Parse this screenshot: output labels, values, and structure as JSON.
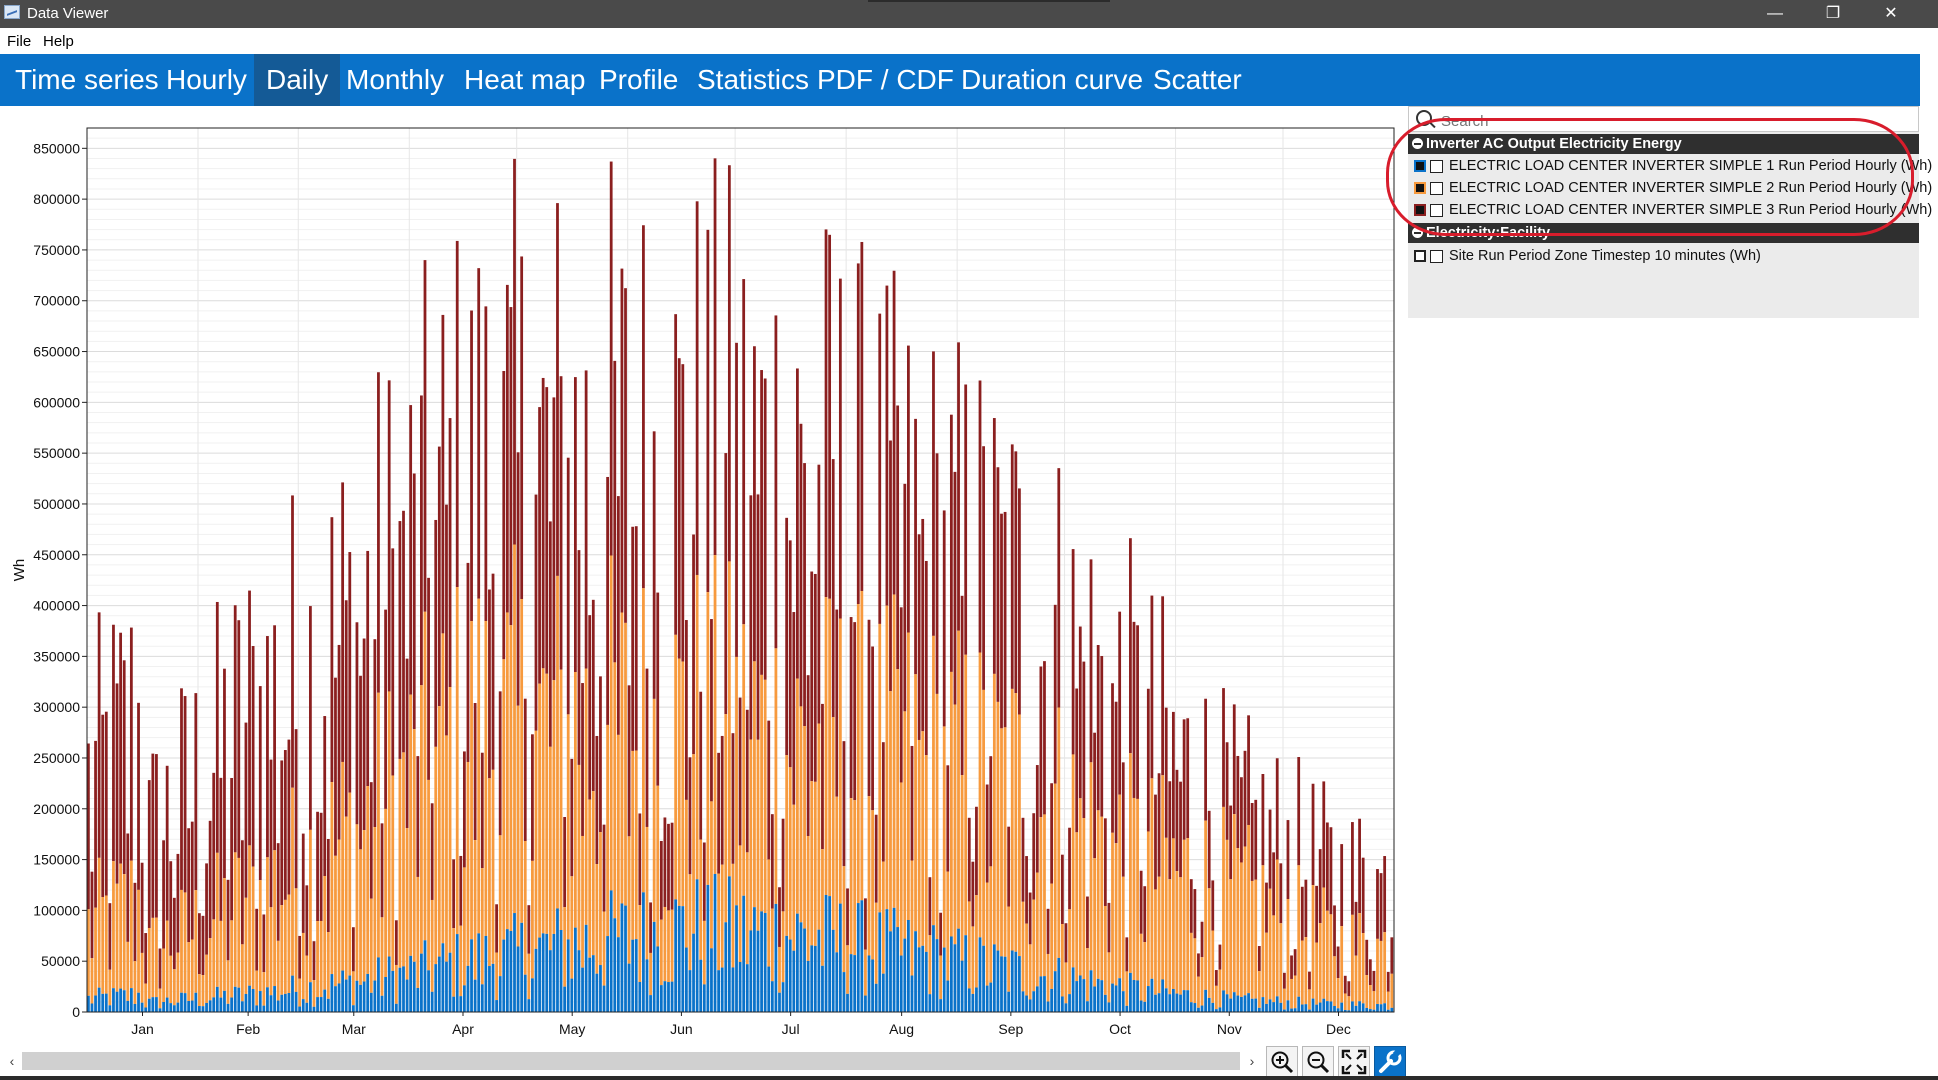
{
  "window": {
    "title": "Data Viewer",
    "minimize": "—",
    "restore": "❐",
    "close": "✕"
  },
  "menu": {
    "file": "File",
    "help": "Help"
  },
  "tabs": [
    {
      "label": "Time series",
      "active": false
    },
    {
      "label": "Hourly",
      "active": false
    },
    {
      "label": "Daily",
      "active": true
    },
    {
      "label": "Monthly",
      "active": false
    },
    {
      "label": "Heat map",
      "active": false
    },
    {
      "label": "Profile",
      "active": false
    },
    {
      "label": "Statistics",
      "active": false
    },
    {
      "label": "PDF / CDF",
      "active": false
    },
    {
      "label": "Duration curve",
      "active": false
    },
    {
      "label": "Scatter",
      "active": false
    }
  ],
  "search": {
    "placeholder": "Search",
    "value": ""
  },
  "panel": {
    "groups": [
      {
        "title": "Inverter AC Output Electricity Energy",
        "items": [
          {
            "label": "ELECTRIC LOAD CENTER INVERTER SIMPLE 1 Run Period Hourly (Wh)",
            "color": "#0a72c9",
            "checked": false
          },
          {
            "label": "ELECTRIC LOAD CENTER INVERTER SIMPLE 2 Run Period Hourly (Wh)",
            "color": "#f79a3e",
            "checked": false
          },
          {
            "label": "ELECTRIC LOAD CENTER INVERTER SIMPLE 3 Run Period Hourly (Wh)",
            "color": "#8b1f1f",
            "checked": false
          }
        ]
      },
      {
        "title": "Electricity:Facility",
        "items": [
          {
            "label": "Site Run Period Zone Timestep 10 minutes (Wh)",
            "color": "#ffffff",
            "checked": false
          }
        ]
      }
    ]
  },
  "colors": {
    "accent": "#0a72c9",
    "annotation": "#d81d2c"
  },
  "chart_data": {
    "type": "bar",
    "stacked": true,
    "ylabel": "Wh",
    "ylim": [
      0,
      870000
    ],
    "yticks": [
      0,
      50000,
      100000,
      150000,
      200000,
      250000,
      300000,
      350000,
      400000,
      450000,
      500000,
      550000,
      600000,
      650000,
      700000,
      750000,
      800000,
      850000
    ],
    "ytick_labels": [
      "0",
      "50000",
      "100000",
      "150000",
      "200000",
      "250000",
      "300000",
      "350000",
      "400000",
      "450000",
      "500000",
      "550000",
      "600000",
      "650000",
      "700000",
      "750000",
      "800000",
      "850000"
    ],
    "months": [
      "Jan",
      "Feb",
      "Mar",
      "Apr",
      "May",
      "Jun",
      "Jul",
      "Aug",
      "Sep",
      "Oct",
      "Nov",
      "Dec"
    ],
    "grid": true,
    "series": [
      {
        "name": "ELECTRIC LOAD CENTER INVERTER SIMPLE 1 Run Period Hourly (Wh)",
        "color": "#0a72c9",
        "monthly_peak_daily_values": [
          15000,
          30000,
          50000,
          85000,
          115000,
          140000,
          130000,
          100000,
          70000,
          40000,
          20000,
          12000
        ]
      },
      {
        "name": "ELECTRIC LOAD CENTER INVERTER SIMPLE 2 Run Period Hourly (Wh)",
        "color": "#f79a3e",
        "monthly_peak_daily_values": [
          95000,
          190000,
          300000,
          460000,
          460000,
          460000,
          440000,
          410000,
          370000,
          260000,
          200000,
          110000
        ]
      },
      {
        "name": "ELECTRIC LOAD CENTER INVERTER SIMPLE 3 Run Period Hourly (Wh)",
        "color": "#8b1f1f",
        "monthly_peak_daily_values": [
          265000,
          480000,
          620000,
          825000,
          860000,
          850000,
          850000,
          720000,
          650000,
          480000,
          310000,
          215000
        ]
      }
    ]
  }
}
